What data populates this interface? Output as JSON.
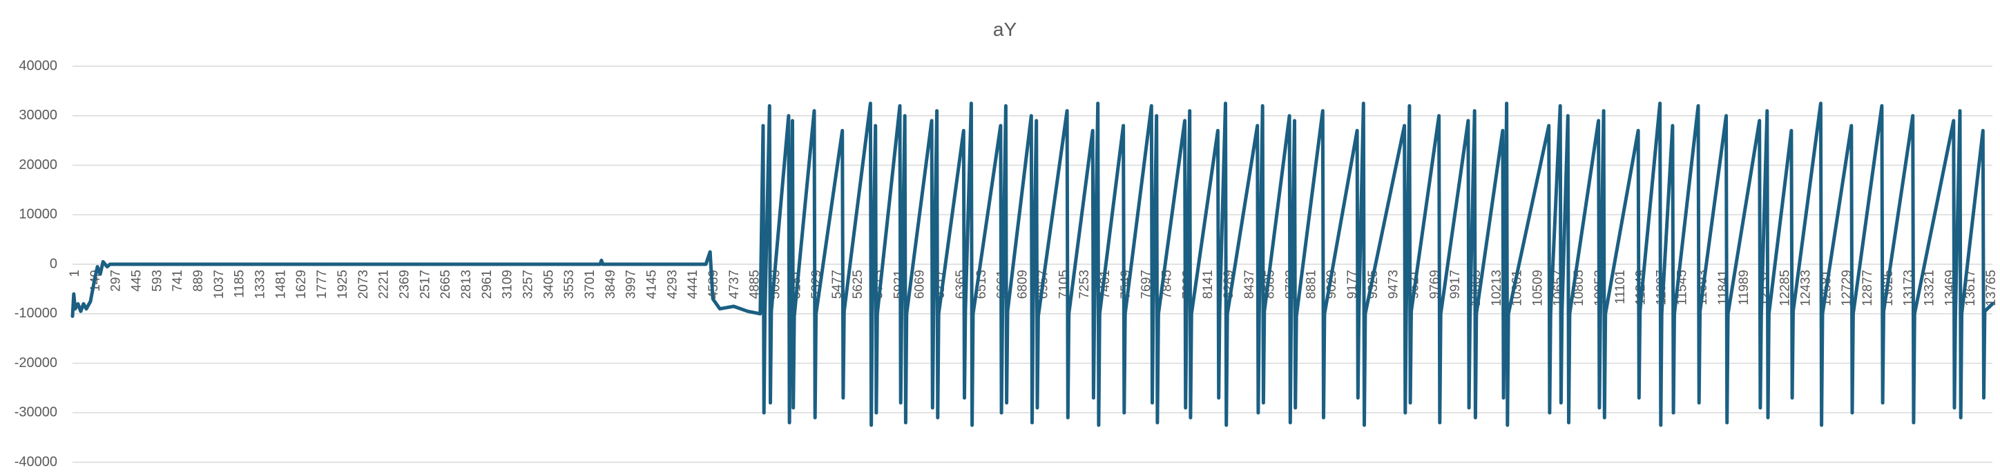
{
  "chart_data": {
    "type": "line",
    "title": "aY",
    "color": "#1b5f82",
    "grid": true,
    "ylim": [
      -40000,
      40000
    ],
    "yticks": [
      -40000,
      -30000,
      -20000,
      -10000,
      0,
      10000,
      20000,
      30000,
      40000
    ],
    "xlim": [
      1,
      13790
    ],
    "xticks": [
      1,
      149,
      297,
      445,
      593,
      741,
      889,
      1037,
      1185,
      1333,
      1481,
      1629,
      1777,
      1925,
      2073,
      2221,
      2369,
      2517,
      2665,
      2813,
      2961,
      3109,
      3257,
      3405,
      3553,
      3701,
      3849,
      3997,
      4145,
      4293,
      4441,
      4589,
      4737,
      4885,
      5033,
      5181,
      5329,
      5477,
      5625,
      5773,
      5921,
      6069,
      6217,
      6365,
      6513,
      6661,
      6809,
      6957,
      7105,
      7253,
      7401,
      7549,
      7697,
      7845,
      7993,
      8141,
      8289,
      8437,
      8585,
      8733,
      8881,
      9029,
      9177,
      9325,
      9473,
      9621,
      9769,
      9917,
      10065,
      10213,
      10361,
      10509,
      10657,
      10805,
      10953,
      11101,
      11249,
      11397,
      11545,
      11693,
      11841,
      11989,
      12137,
      12285,
      12433,
      12581,
      12729,
      12877,
      13025,
      13173,
      13321,
      13469,
      13617,
      13765
    ],
    "x": [
      1,
      10,
      20,
      40,
      60,
      80,
      100,
      130,
      160,
      180,
      200,
      220,
      250,
      270,
      1900,
      3790,
      3800,
      3810,
      4550,
      4580,
      4600,
      4650,
      4750,
      4850,
      4940,
      4961,
      4967,
      4974,
      5007,
      5013,
      5020,
      5144,
      5150,
      5157,
      5172,
      5178,
      5185,
      5328,
      5334,
      5341,
      5530,
      5536,
      5543,
      5732,
      5738,
      5745,
      5768,
      5774,
      5781,
      5943,
      5949,
      5956,
      5979,
      5985,
      5992,
      6172,
      6178,
      6185,
      6209,
      6215,
      6222,
      6401,
      6407,
      6414,
      6456,
      6462,
      6469,
      6667,
      6673,
      6680,
      6704,
      6710,
      6717,
      6887,
      6893,
      6900,
      6924,
      6930,
      6937,
      7144,
      7150,
      7157,
      7328,
      7334,
      7341,
      7365,
      7371,
      7378,
      7548,
      7554,
      7561,
      7750,
      7756,
      7763,
      7787,
      7793,
      7800,
      7989,
      7995,
      8002,
      8025,
      8031,
      8038,
      8227,
      8233,
      8240,
      8282,
      8288,
      8295,
      8511,
      8517,
      8524,
      8548,
      8554,
      8561,
      8741,
      8747,
      8754,
      8778,
      8784,
      8791,
      8980,
      8986,
      8993,
      9227,
      9233,
      9240,
      9273,
      9279,
      9286,
      9567,
      9573,
      9580,
      9603,
      9609,
      9616,
      9815,
      9821,
      9828,
      10025,
      10031,
      10038,
      10071,
      10077,
      10084,
      10273,
      10279,
      10286,
      10301,
      10307,
      10314,
      10604,
      10610,
      10617,
      10686,
      10692,
      10699,
      10741,
      10747,
      10754,
      10961,
      10967,
      10974,
      10998,
      11004,
      11011,
      11246,
      11252,
      11259,
      11402,
      11408,
      11415,
      11493,
      11499,
      11506,
      11677,
      11683,
      11690,
      11878,
      11884,
      11891,
      12117,
      12123,
      12130,
      12172,
      12178,
      12185,
      12346,
      12352,
      12359,
      12557,
      12563,
      12570,
      12777,
      12783,
      12790,
      12996,
      13002,
      13009,
      13218,
      13224,
      13231,
      13511,
      13517,
      13524,
      13557,
      13563,
      13570,
      13722,
      13728,
      13735,
      13790
    ],
    "values": [
      -10500,
      -6000,
      -9000,
      -8000,
      -9500,
      -8000,
      -9000,
      -7500,
      -3000,
      -500,
      -2000,
      500,
      -500,
      0,
      0,
      0,
      800,
      0,
      0,
      2500,
      -7000,
      -9000,
      -8500,
      -9500,
      -10000,
      28000,
      -30000,
      -10000,
      32000,
      -28000,
      -9500,
      30000,
      -32000,
      -10000,
      29000,
      -29000,
      -10500,
      31000,
      -31000,
      -10000,
      27000,
      -27000,
      -9500,
      32500,
      -32500,
      -10000,
      28000,
      -30000,
      -10000,
      32000,
      -28000,
      -9500,
      30000,
      -32000,
      -10000,
      29000,
      -29000,
      -10500,
      31000,
      -31000,
      -10000,
      27000,
      -27000,
      -9500,
      32500,
      -32500,
      -10000,
      28000,
      -30000,
      -10000,
      32000,
      -28000,
      -9500,
      30000,
      -32000,
      -10000,
      29000,
      -29000,
      -10500,
      31000,
      -31000,
      -10000,
      27000,
      -27000,
      -9500,
      32500,
      -32500,
      -10000,
      28000,
      -30000,
      -10000,
      32000,
      -28000,
      -9500,
      30000,
      -32000,
      -10000,
      29000,
      -29000,
      -10500,
      31000,
      -31000,
      -10000,
      27000,
      -27000,
      -9500,
      32500,
      -32500,
      -10000,
      28000,
      -30000,
      -10000,
      32000,
      -28000,
      -9500,
      30000,
      -32000,
      -10000,
      29000,
      -29000,
      -10500,
      31000,
      -31000,
      -10000,
      27000,
      -27000,
      -9500,
      32500,
      -32500,
      -10000,
      28000,
      -30000,
      -10000,
      32000,
      -28000,
      -9500,
      30000,
      -32000,
      -10000,
      29000,
      -29000,
      -10500,
      31000,
      -31000,
      -10000,
      27000,
      -27000,
      -9500,
      32500,
      -32500,
      -10000,
      28000,
      -30000,
      -10000,
      32000,
      -28000,
      -9500,
      30000,
      -32000,
      -10000,
      29000,
      -29000,
      -10500,
      31000,
      -31000,
      -10000,
      27000,
      -27000,
      -9500,
      32500,
      -32500,
      -10000,
      28000,
      -30000,
      -10000,
      32000,
      -28000,
      -9500,
      30000,
      -32000,
      -10000,
      29000,
      -29000,
      -10500,
      31000,
      -31000,
      -10000,
      27000,
      -27000,
      -9500,
      32500,
      -32500,
      -10000,
      28000,
      -30000,
      -10000,
      32000,
      -28000,
      -9500,
      30000,
      -32000,
      -10000,
      29000,
      -29000,
      -10500,
      31000,
      -31000,
      -10000,
      27000,
      -27000,
      -9500,
      -8000
    ]
  }
}
